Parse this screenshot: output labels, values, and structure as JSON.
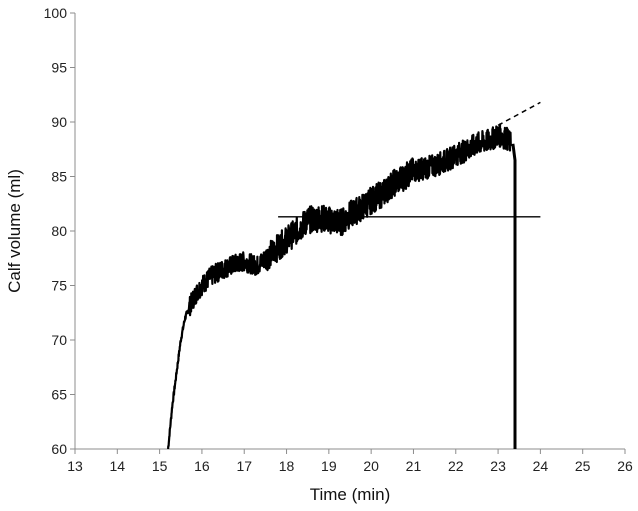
{
  "chart_data": {
    "type": "line",
    "title": "",
    "xlabel": "Time (min)",
    "ylabel": "Calf volume (ml)",
    "xlim": [
      13,
      26
    ],
    "ylim": [
      60,
      100
    ],
    "xticks": [
      "13",
      "14",
      "15",
      "16",
      "17",
      "18",
      "19",
      "20",
      "21",
      "22",
      "23",
      "24",
      "25",
      "26"
    ],
    "yticks": [
      "60",
      "65",
      "70",
      "75",
      "80",
      "85",
      "90",
      "95",
      "100"
    ],
    "grid": false,
    "legend": "none",
    "line_color": "#000000",
    "series": [
      {
        "style": "solid-noisy",
        "x": [
          15.2,
          15.25,
          15.3,
          15.4,
          15.5,
          15.6,
          15.7,
          15.8,
          15.9,
          16.0,
          16.2,
          16.5,
          16.8,
          17.0,
          17.3,
          17.5,
          17.8,
          18.0,
          18.3,
          18.5,
          18.8,
          19.0,
          19.3,
          19.5,
          19.8,
          20.0,
          20.3,
          20.5,
          20.8,
          21.0,
          21.3,
          21.5,
          21.8,
          22.0,
          22.3,
          22.5,
          22.8,
          23.0,
          23.2,
          23.3
        ],
        "y": [
          60.0,
          62.0,
          64.0,
          67.0,
          70.0,
          72.0,
          73.0,
          73.8,
          74.5,
          75.0,
          75.8,
          76.5,
          77.0,
          77.2,
          76.8,
          77.5,
          78.5,
          79.2,
          80.2,
          81.0,
          81.2,
          81.0,
          80.8,
          81.5,
          82.2,
          82.8,
          83.5,
          84.3,
          85.0,
          85.5,
          85.8,
          86.0,
          86.5,
          87.0,
          87.5,
          88.0,
          88.3,
          88.8,
          88.5,
          88.0
        ]
      },
      {
        "style": "drop",
        "x": [
          23.35,
          23.4,
          23.4
        ],
        "y": [
          88.0,
          86.5,
          60.0
        ]
      },
      {
        "style": "dashed",
        "x": [
          23.0,
          24.0
        ],
        "y": [
          89.7,
          91.8
        ]
      },
      {
        "style": "reference",
        "x": [
          17.8,
          24.0
        ],
        "y": [
          81.3,
          81.3
        ]
      }
    ]
  }
}
